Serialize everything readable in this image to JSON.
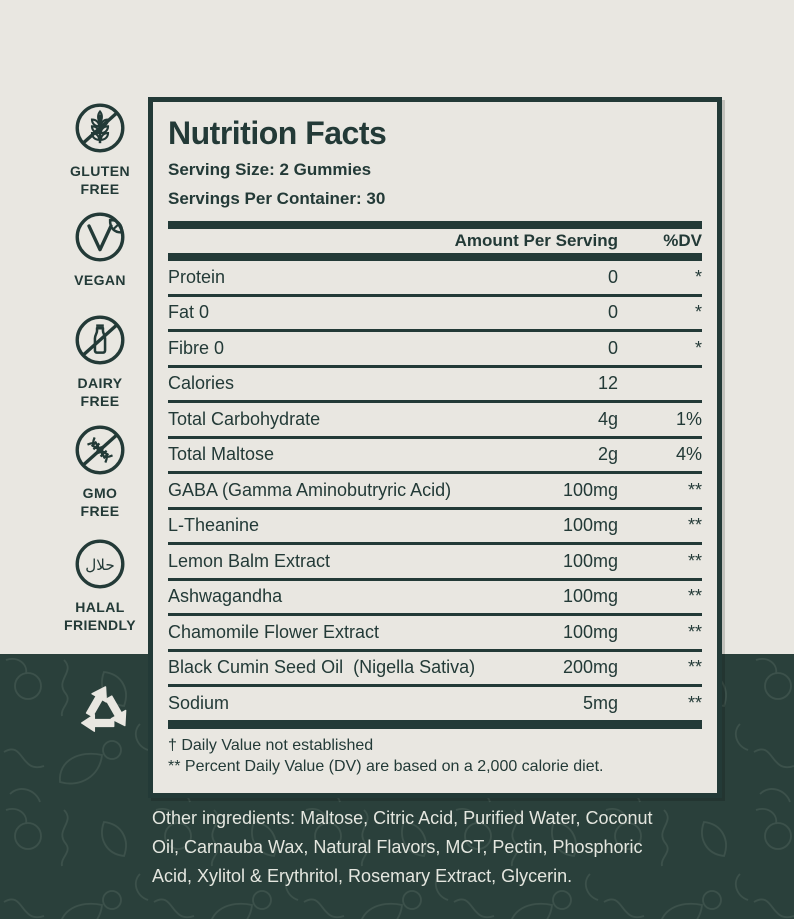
{
  "colors": {
    "ink": "#233A37",
    "cream": "#E9E7E1",
    "dark_band": "#2A403B",
    "pattern_stroke": "#4A5F56",
    "ingredients_text": "#E4E6DF"
  },
  "sidebar": {
    "badges": [
      {
        "icon": "wheat-crossed-icon",
        "label": "GLUTEN\nFREE"
      },
      {
        "icon": "vegan-leaf-icon",
        "label": "VEGAN"
      },
      {
        "icon": "milk-bottle-crossed-icon",
        "label": "DAIRY\nFREE"
      },
      {
        "icon": "dna-crossed-icon",
        "label": "GMO\nFREE"
      },
      {
        "icon": "halal-icon",
        "label": "HALAL\nFRIENDLY",
        "icon_text": "حلال"
      }
    ],
    "recycle_icon": "recycling-symbol"
  },
  "panel": {
    "title": "Nutrition Facts",
    "serving_size": "Serving Size: 2 Gummies",
    "servings_per_container": "Servings Per Container: 30",
    "columns": {
      "amount": "Amount Per Serving",
      "dv": "%DV"
    },
    "rows": [
      {
        "name": "Protein",
        "amount": "0",
        "dv": "*"
      },
      {
        "name": "Fat 0",
        "amount": "0",
        "dv": "*"
      },
      {
        "name": "Fibre 0",
        "amount": "0",
        "dv": "*"
      },
      {
        "name": "Calories",
        "amount": "12",
        "dv": ""
      },
      {
        "name": "Total Carbohydrate",
        "amount": "4g",
        "dv": "1%"
      },
      {
        "name": "Total Maltose",
        "amount": "2g",
        "dv": "4%"
      },
      {
        "name": "GABA (Gamma Aminobutryric Acid)",
        "amount": "100mg",
        "dv": "**"
      },
      {
        "name": "L-Theanine",
        "amount": "100mg",
        "dv": "**"
      },
      {
        "name": "Lemon Balm Extract",
        "amount": "100mg",
        "dv": "**"
      },
      {
        "name": "Ashwagandha",
        "amount": "100mg",
        "dv": "**"
      },
      {
        "name": "Chamomile Flower Extract",
        "amount": "100mg",
        "dv": "**"
      },
      {
        "name": "Black Cumin Seed Oil  (Nigella Sativa)",
        "amount": "200mg",
        "dv": "**"
      },
      {
        "name": "Sodium",
        "amount": "5mg",
        "dv": "**"
      }
    ],
    "footnotes": [
      "† Daily Value not established",
      "** Percent Daily Value (DV) are based on a 2,000 calorie diet."
    ]
  },
  "footer": {
    "ingredients": "Other ingredients: Maltose, Citric Acid, Purified Water, Coconut\nOil, Carnauba Wax, Natural Flavors, MCT, Pectin, Phosphoric\nAcid, Xylitol & Erythritol, Rosemary Extract, Glycerin."
  }
}
